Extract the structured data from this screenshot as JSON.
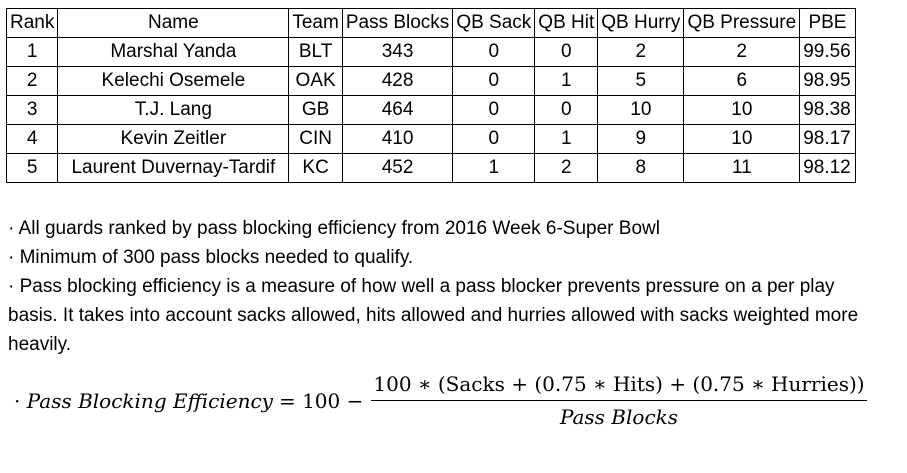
{
  "table": {
    "headers": [
      "Rank",
      "Name",
      "Team",
      "Pass Blocks",
      "QB Sack",
      "QB Hit",
      "QB Hurry",
      "QB Pressure",
      "PBE"
    ],
    "rows": [
      [
        "1",
        "Marshal Yanda",
        "BLT",
        "343",
        "0",
        "0",
        "2",
        "2",
        "99.56"
      ],
      [
        "2",
        "Kelechi Osemele",
        "OAK",
        "428",
        "0",
        "1",
        "5",
        "6",
        "98.95"
      ],
      [
        "3",
        "T.J. Lang",
        "GB",
        "464",
        "0",
        "0",
        "10",
        "10",
        "98.38"
      ],
      [
        "4",
        "Kevin Zeitler",
        "CIN",
        "410",
        "0",
        "1",
        "9",
        "10",
        "98.17"
      ],
      [
        "5",
        "Laurent Duvernay-Tardif",
        "KC",
        "452",
        "1",
        "2",
        "8",
        "11",
        "98.12"
      ]
    ]
  },
  "notes": [
    "· All guards ranked by pass blocking efficiency from 2016 Week 6-Super Bowl",
    "· Minimum of 300 pass blocks needed to qualify.",
    "· Pass blocking efficiency is a measure of how well a pass blocker prevents pressure on a per play basis. It takes into account sacks allowed, hits allowed and hurries allowed with sacks weighted more heavily."
  ],
  "formula": {
    "lhs": "· Pass Blocking Efficiency",
    "equals": "= 100 −",
    "numerator": "100 ∗ (Sacks + (0.75 ∗ Hits) + (0.75 ∗ Hurries))",
    "denominator": "Pass Blocks"
  }
}
